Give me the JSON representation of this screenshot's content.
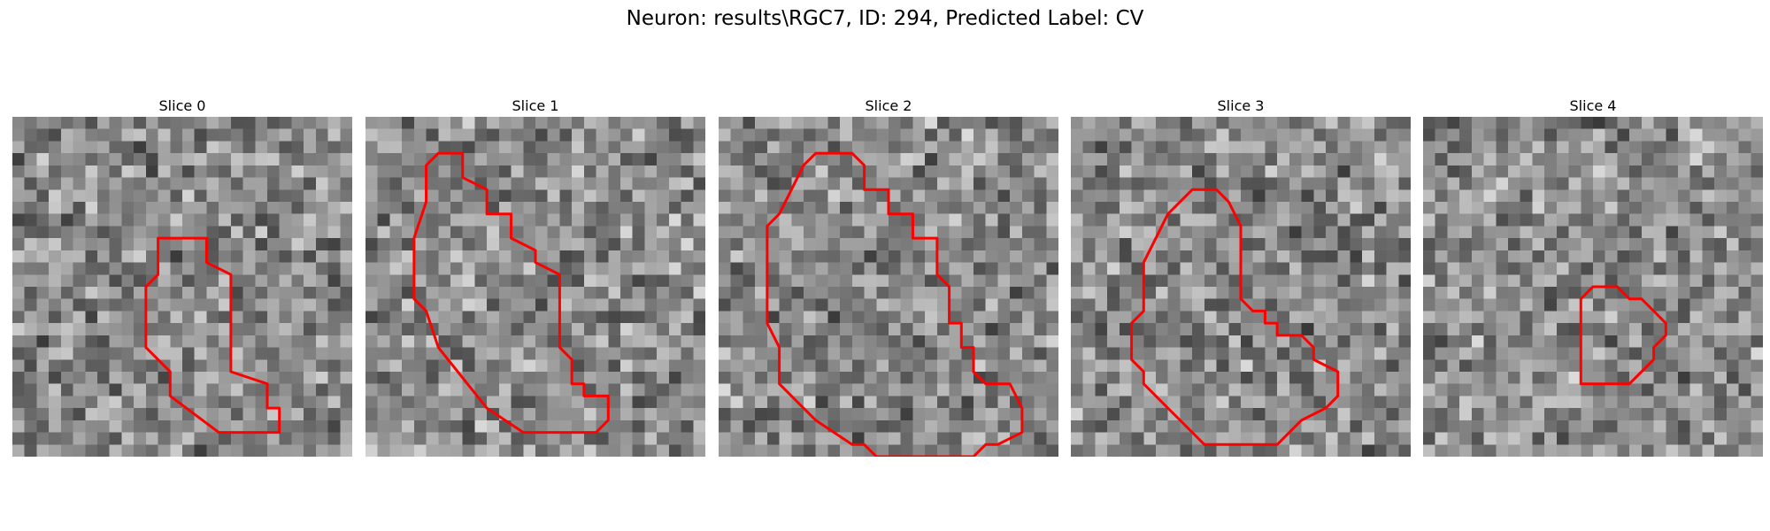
{
  "figure": {
    "title": "Neuron: results\\RGC7, ID: 294, Predicted Label: CV"
  },
  "outline_color": "#ff0000",
  "panels": [
    {
      "title": "Slice 0",
      "seed": 17,
      "mask": [
        [
          12,
          13
        ],
        [
          12,
          10
        ],
        [
          16,
          10
        ],
        [
          16,
          12
        ],
        [
          18,
          13
        ],
        [
          18,
          21
        ],
        [
          21,
          22
        ],
        [
          21,
          24
        ],
        [
          22,
          24
        ],
        [
          22,
          26
        ],
        [
          17,
          26
        ],
        [
          13,
          23
        ],
        [
          13,
          21
        ],
        [
          11,
          19
        ],
        [
          11,
          14
        ]
      ]
    },
    {
      "title": "Slice 1",
      "seed": 41,
      "mask": [
        [
          5,
          7
        ],
        [
          5,
          4
        ],
        [
          6,
          3
        ],
        [
          8,
          3
        ],
        [
          8,
          5
        ],
        [
          10,
          6
        ],
        [
          10,
          8
        ],
        [
          12,
          8
        ],
        [
          12,
          10
        ],
        [
          14,
          11
        ],
        [
          14,
          12
        ],
        [
          16,
          13
        ],
        [
          16,
          19
        ],
        [
          17,
          20
        ],
        [
          17,
          22
        ],
        [
          18,
          22
        ],
        [
          18,
          23
        ],
        [
          20,
          23
        ],
        [
          20,
          25
        ],
        [
          19,
          26
        ],
        [
          13,
          26
        ],
        [
          10,
          24
        ],
        [
          6,
          19
        ],
        [
          5,
          16
        ],
        [
          4,
          15
        ],
        [
          4,
          10
        ]
      ]
    },
    {
      "title": "Slice 2",
      "seed": 73,
      "mask": [
        [
          5,
          8
        ],
        [
          6,
          6
        ],
        [
          7,
          4
        ],
        [
          8,
          3
        ],
        [
          11,
          3
        ],
        [
          12,
          4
        ],
        [
          12,
          6
        ],
        [
          14,
          6
        ],
        [
          14,
          8
        ],
        [
          16,
          8
        ],
        [
          16,
          10
        ],
        [
          18,
          10
        ],
        [
          18,
          13
        ],
        [
          19,
          14
        ],
        [
          19,
          17
        ],
        [
          20,
          17
        ],
        [
          20,
          19
        ],
        [
          21,
          19
        ],
        [
          21,
          21
        ],
        [
          22,
          22
        ],
        [
          24,
          22
        ],
        [
          25,
          24
        ],
        [
          25,
          26
        ],
        [
          23,
          27
        ],
        [
          22,
          27
        ],
        [
          21,
          28
        ],
        [
          13,
          28
        ],
        [
          12,
          27
        ],
        [
          11,
          27
        ],
        [
          8,
          25
        ],
        [
          7,
          24
        ],
        [
          5,
          22
        ],
        [
          5,
          19
        ],
        [
          4,
          17
        ],
        [
          4,
          9
        ]
      ]
    },
    {
      "title": "Slice 3",
      "seed": 29,
      "mask": [
        [
          8,
          8
        ],
        [
          10,
          6
        ],
        [
          12,
          6
        ],
        [
          13,
          7
        ],
        [
          14,
          9
        ],
        [
          14,
          15
        ],
        [
          15,
          16
        ],
        [
          16,
          16
        ],
        [
          16,
          17
        ],
        [
          17,
          17
        ],
        [
          17,
          18
        ],
        [
          19,
          18
        ],
        [
          20,
          19
        ],
        [
          20,
          20
        ],
        [
          22,
          21
        ],
        [
          22,
          23
        ],
        [
          21,
          24
        ],
        [
          19,
          25
        ],
        [
          18,
          26
        ],
        [
          17,
          27
        ],
        [
          14,
          27
        ],
        [
          12,
          27
        ],
        [
          11,
          27
        ],
        [
          10,
          26
        ],
        [
          9,
          25
        ],
        [
          8,
          24
        ],
        [
          6,
          22
        ],
        [
          6,
          21
        ],
        [
          5,
          20
        ],
        [
          5,
          17
        ],
        [
          6,
          16
        ],
        [
          6,
          12
        ],
        [
          7,
          10
        ]
      ]
    },
    {
      "title": "Slice 4",
      "seed": 97,
      "mask": [
        [
          13,
          15
        ],
        [
          14,
          14
        ],
        [
          16,
          14
        ],
        [
          17,
          15
        ],
        [
          18,
          15
        ],
        [
          19,
          16
        ],
        [
          20,
          17
        ],
        [
          20,
          18
        ],
        [
          19,
          19
        ],
        [
          19,
          20
        ],
        [
          18,
          21
        ],
        [
          17,
          22
        ],
        [
          15,
          22
        ],
        [
          13,
          22
        ]
      ]
    }
  ]
}
